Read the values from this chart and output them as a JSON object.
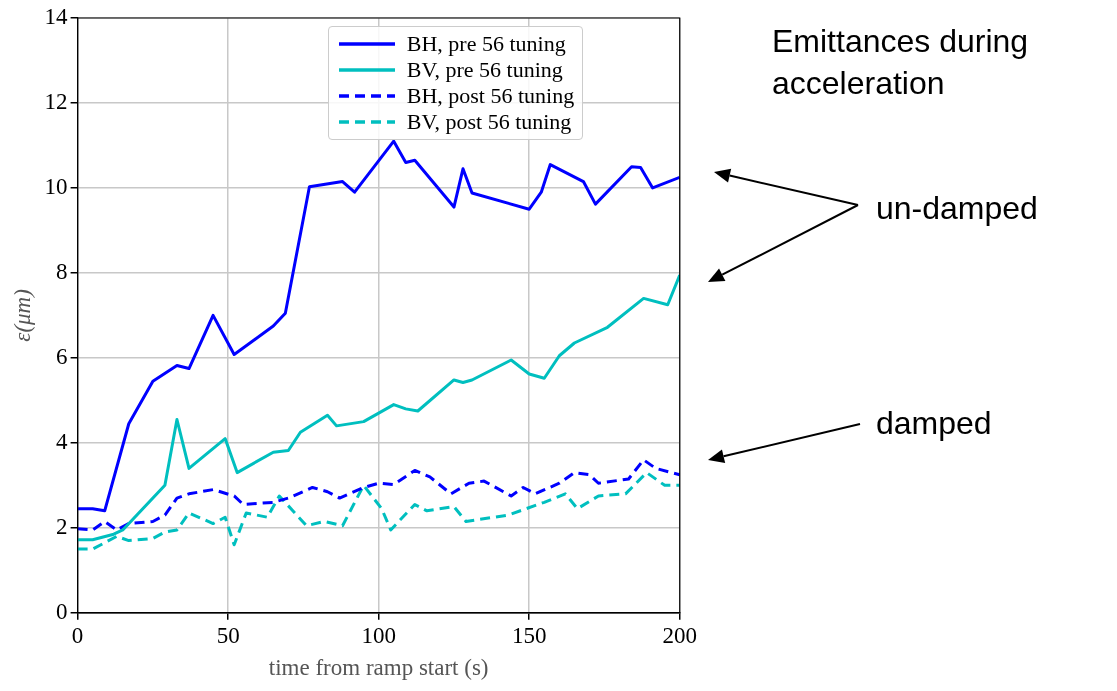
{
  "chart_data": {
    "type": "line",
    "title": "Emittances during acceleration",
    "xlabel": "time from ramp start (s)",
    "ylabel": "ε(μm)",
    "xlim": [
      0,
      200
    ],
    "xticks": [
      0,
      50,
      100,
      150,
      200
    ],
    "ylim": [
      0,
      14
    ],
    "yticks": [
      0,
      2,
      4,
      6,
      8,
      10,
      12,
      14
    ],
    "grid": true,
    "legend": "top right",
    "marker": "none",
    "annotations": [
      "un-damped",
      "damped"
    ],
    "series": [
      {
        "name": "BH, pre 56 tuning",
        "color": "#0000ff",
        "line_style": "solid",
        "x": [
          0,
          5,
          9,
          17,
          25,
          33,
          37,
          45,
          52,
          65,
          69,
          77,
          88,
          92,
          105,
          109,
          112,
          125,
          128,
          131,
          150,
          154,
          157,
          168,
          172,
          184,
          187,
          191,
          200
        ],
        "values": [
          2.45,
          2.45,
          2.4,
          4.45,
          5.45,
          5.82,
          5.75,
          7.0,
          6.08,
          6.75,
          7.05,
          10.03,
          10.15,
          9.9,
          11.1,
          10.6,
          10.65,
          9.55,
          10.45,
          9.88,
          9.5,
          9.9,
          10.55,
          10.15,
          9.62,
          10.5,
          10.48,
          10.0,
          10.25
        ]
      },
      {
        "name": "BV, pre 56 tuning",
        "color": "#00bfbf",
        "line_style": "solid",
        "x": [
          0,
          5,
          12,
          15,
          29,
          33,
          37,
          49,
          53,
          65,
          70,
          74,
          83,
          86,
          95,
          105,
          109,
          113,
          125,
          128,
          131,
          144,
          150,
          155,
          160,
          165,
          176,
          188,
          196,
          200
        ],
        "values": [
          1.72,
          1.72,
          1.85,
          1.95,
          3.0,
          4.55,
          3.4,
          4.1,
          3.3,
          3.78,
          3.82,
          4.25,
          4.65,
          4.4,
          4.5,
          4.9,
          4.8,
          4.75,
          5.48,
          5.42,
          5.48,
          5.95,
          5.62,
          5.52,
          6.05,
          6.35,
          6.72,
          7.4,
          7.25,
          7.95
        ]
      },
      {
        "name": "BH, post 56 tuning",
        "color": "#0000ff",
        "line_style": "dashed",
        "x": [
          0,
          5,
          9,
          13,
          17,
          25,
          29,
          33,
          37,
          45,
          52,
          55,
          65,
          70,
          78,
          83,
          87,
          95,
          100,
          105,
          112,
          117,
          124,
          130,
          135,
          144,
          148,
          152,
          160,
          165,
          170,
          173,
          183,
          188,
          192,
          200
        ],
        "values": [
          1.98,
          1.95,
          2.15,
          1.95,
          2.1,
          2.15,
          2.3,
          2.7,
          2.8,
          2.9,
          2.75,
          2.55,
          2.6,
          2.7,
          2.95,
          2.85,
          2.7,
          2.95,
          3.05,
          3.02,
          3.35,
          3.2,
          2.8,
          3.05,
          3.1,
          2.75,
          2.95,
          2.8,
          3.05,
          3.3,
          3.25,
          3.05,
          3.15,
          3.6,
          3.4,
          3.25
        ]
      },
      {
        "name": "BV, post 56 tuning",
        "color": "#00bfbf",
        "line_style": "dashed",
        "x": [
          0,
          5,
          9,
          13,
          17,
          25,
          29,
          33,
          37,
          45,
          49,
          52,
          56,
          63,
          67,
          76,
          82,
          88,
          95,
          101,
          104,
          112,
          116,
          125,
          129,
          143,
          155,
          162,
          166,
          173,
          182,
          189,
          195,
          200
        ],
        "values": [
          1.5,
          1.5,
          1.65,
          1.8,
          1.7,
          1.75,
          1.9,
          1.95,
          2.35,
          2.1,
          2.25,
          1.6,
          2.35,
          2.25,
          2.75,
          2.05,
          2.15,
          2.05,
          3.0,
          2.45,
          1.95,
          2.55,
          2.4,
          2.5,
          2.15,
          2.3,
          2.6,
          2.8,
          2.45,
          2.75,
          2.8,
          3.3,
          3.0,
          3.0
        ]
      }
    ]
  }
}
